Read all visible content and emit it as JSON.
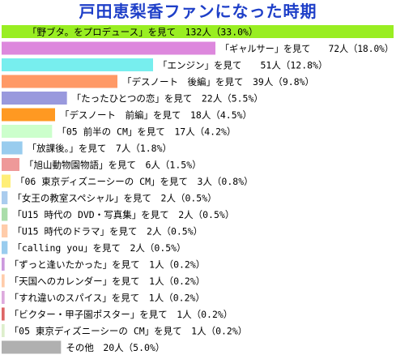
{
  "title": "戸田恵梨香ファンになった時期",
  "chart_data": {
    "type": "bar",
    "orientation": "horizontal",
    "title": "戸田恵梨香ファンになった時期",
    "xlabel": "",
    "ylabel": "",
    "xlim": [
      0,
      132
    ],
    "grid": false,
    "legend": "none",
    "unit": "人",
    "categories": [
      "「野ブタ。をプロデュース」を見て",
      "「ギャルサー」を見て",
      "「エンジン」を見て",
      "「デスノート　後編」を見て",
      "「たったひとつの恋」を見て",
      "「デスノート　前編」を見て",
      "「05 前半の CM」を見て",
      "「放課後。」を見て",
      "「旭山動物園物語」を見て",
      "「06 東京ディズニーシーの CM」を見て",
      "「女王の教室スペシャル」を見て",
      "「U15 時代の DVD・写真集」を見て",
      "「U15 時代のドラマ」を見て",
      "「calling you」を見て",
      "「ずっと逢いたかった」を見て",
      "「天国へのカレンダー」を見て",
      "「すれ違いのスパイス」を見て",
      "「ビクター・甲子園ポスター」を見て",
      "「05 東京ディズニーシーの CM」を見て",
      "その他"
    ],
    "values": [
      132,
      72,
      51,
      39,
      22,
      18,
      17,
      7,
      6,
      3,
      2,
      2,
      2,
      2,
      1,
      1,
      1,
      1,
      1,
      20
    ],
    "percent_labels": [
      "33.0%",
      "18.0%",
      "12.8%",
      "9.8%",
      "5.5%",
      "4.5%",
      "4.2%",
      "1.8%",
      "1.5%",
      "0.8%",
      "0.5%",
      "0.5%",
      "0.5%",
      "0.5%",
      "0.2%",
      "0.2%",
      "0.2%",
      "0.2%",
      "0.2%",
      "5.0%"
    ],
    "labels": [
      "「野ブタ。をプロデュース」を見て　132人（33.0%）",
      "「ギャルサー」を見て　　72人（18.0%）",
      "「エンジン」を見て　　51人（12.8%）",
      "「デスノート　後編」を見て　39人（9.8%）",
      "「たったひとつの恋」を見て　22人（5.5%）",
      "「デスノート　前編」を見て　18人（4.5%）",
      "「05 前半の CM」を見て　17人（4.2%）",
      "「放課後。」を見て　7人（1.8%）",
      "「旭山動物園物語」を見て　6人（1.5%）",
      "「06 東京ディズニーシーの CM」を見て　3人（0.8%）",
      "「女王の教室スペシャル」を見て　2人（0.5%）",
      "「U15 時代の DVD・写真集」を見て　2人（0.5%）",
      "「U15 時代のドラマ」を見て　2人（0.5%）",
      "「calling you」を見て　2人（0.5%）",
      "「ずっと逢いたかった」を見て　1人（0.2%）",
      "「天国へのカレンダー」を見て　1人（0.2%）",
      "「すれ違いのスパイス」を見て　1人（0.2%）",
      "「ビクター・甲子園ポスター」を見て　1人（0.2%）",
      "「05 東京ディズニーシーの CM」を見て　1人（0.2%）",
      "その他　20人（5.0%）"
    ],
    "colors": [
      "#99ee22",
      "#dd88dd",
      "#77eeee",
      "#ff9966",
      "#9999dd",
      "#ff9922",
      "#ccffcc",
      "#99ccee",
      "#ee9999",
      "#ffee77",
      "#aaccee",
      "#aaddaa",
      "#ffccaa",
      "#99ccee",
      "#cc99dd",
      "#ffccaa",
      "#ddaadd",
      "#dd6666",
      "#ddeecc",
      "#b0b0b0"
    ],
    "title_color": "#1e3fc8"
  }
}
